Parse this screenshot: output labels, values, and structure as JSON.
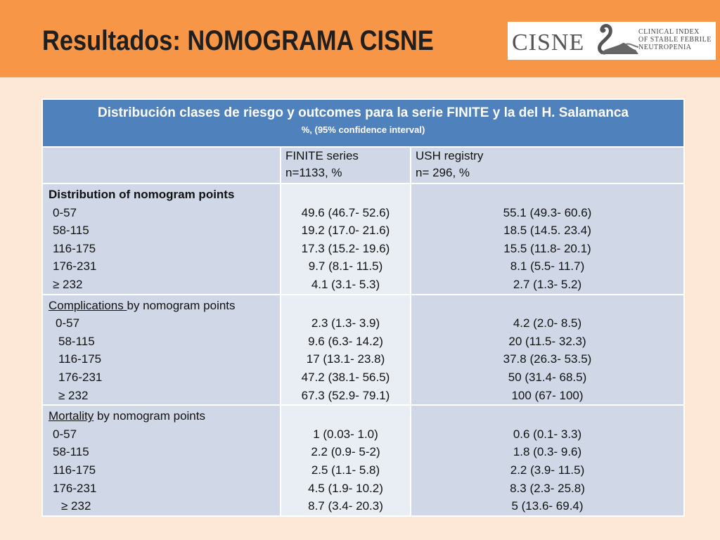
{
  "title": "Resultados: NOMOGRAMA CISNE",
  "logo": {
    "word": "CISNE",
    "sub": [
      "CLINICAL INDEX",
      "OF STABLE FEBRILE",
      "NEUTROPENIA"
    ]
  },
  "table": {
    "title": "Distribución clases de riesgo y outcomes para la serie FINITE y la del H. Salamanca",
    "subtitle": "%, (95% confidence interval)",
    "columns": [
      {
        "name": "FINITE series",
        "n": "n=1133, %"
      },
      {
        "name": "USH registry",
        "n": "n= 296, %"
      }
    ],
    "sections": [
      {
        "heading": "Distribution of nomogram points",
        "heading_underlined": "",
        "heading_rest": "",
        "labels": [
          "0-57",
          "58-115",
          "116-175",
          "176-231",
          "≥ 232"
        ],
        "finite": [
          "49.6 (46.7- 52.6)",
          "19.2 (17.0- 21.6)",
          "17.3 (15.2- 19.6)",
          "9.7 (8.1- 11.5)",
          "4.1 (3.1- 5.3)"
        ],
        "ush": [
          "55.1 (49.3- 60.6)",
          "18.5 (14.5. 23.4)",
          "15.5 (11.8- 20.1)",
          "8.1 (5.5- 11.7)",
          "2.7 (1.3- 5.2)"
        ]
      },
      {
        "heading_underlined": "Complications ",
        "heading_rest": "by nomogram points",
        "labels": [
          "0-57",
          "58-115",
          "116-175",
          "176-231",
          "≥ 232"
        ],
        "finite": [
          "2.3 (1.3- 3.9)",
          "9.6 (6.3- 14.2)",
          "17 (13.1- 23.8)",
          "47.2 (38.1- 56.5)",
          "67.3 (52.9- 79.1)"
        ],
        "ush": [
          "4.2 (2.0- 8.5)",
          "20 (11.5- 32.3)",
          "37.8 (26.3- 53.5)",
          "50 (31.4- 68.5)",
          "100 (67- 100)"
        ]
      },
      {
        "heading_underlined": "Mortality",
        "heading_rest": " by nomogram points",
        "labels": [
          "0-57",
          "58-115",
          "116-175",
          "176-231",
          "≥ 232"
        ],
        "finite": [
          "1 (0.03- 1.0)",
          "2.2 (0.9- 5-2)",
          "2.5 (1.1- 5.8)",
          "4.5 (1.9- 10.2)",
          "8.7 (3.4- 20.3)"
        ],
        "ush": [
          "0.6 (0.1- 3.3)",
          "1.8 (0.3- 9.6)",
          "2.2 (3.9- 11.5)",
          "8.3 (2.3- 25.8)",
          "5 (13.6- 69.4)"
        ]
      }
    ]
  },
  "colors": {
    "header_bg": "#f79646",
    "page_bg": "#fde8d8",
    "table_header_bg": "#4f81bd",
    "row_dark": "#d0d8e8",
    "row_light": "#e9edf4"
  }
}
